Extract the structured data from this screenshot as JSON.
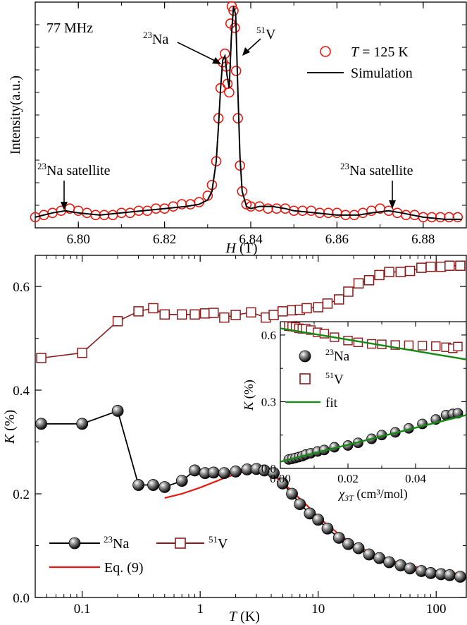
{
  "colors": {
    "red": "#e8170f",
    "brown": "#8b1a1a",
    "green": "#138a13",
    "black": "#000000"
  },
  "chart_data": [
    {
      "type": "scatter",
      "xlabel_sym": "H",
      "xlabel_unit": " (T)",
      "ylabel": "Intensity(a.u.)",
      "xlim": [
        6.79,
        6.89
      ],
      "ylim": [
        0,
        1
      ],
      "x_ticks": [
        6.8,
        6.82,
        6.84,
        6.86,
        6.88
      ],
      "x_tick_labels": [
        "6.80",
        "6.82",
        "6.84",
        "6.86",
        "6.88"
      ],
      "annotations": {
        "freq": "77 MHz",
        "na_sup": "23",
        "na_text": "Na",
        "v_sup": "51",
        "v_text": "V",
        "sat_text": "Na satellite"
      },
      "legend": {
        "temp_sym": "T",
        "temp_rest": " = 125 K",
        "sim": "Simulation"
      },
      "series": [
        {
          "name": "T = 125 K",
          "x": [
            6.79,
            6.792,
            6.794,
            6.796,
            6.798,
            6.8,
            6.802,
            6.804,
            6.806,
            6.808,
            6.81,
            6.812,
            6.814,
            6.816,
            6.818,
            6.82,
            6.822,
            6.824,
            6.826,
            6.828,
            6.83,
            6.831,
            6.832,
            6.8325,
            6.833,
            6.8335,
            6.834,
            6.8343,
            6.8346,
            6.835,
            6.8353,
            6.8356,
            6.836,
            6.8363,
            6.8366,
            6.837,
            6.8375,
            6.838,
            6.839,
            6.84,
            6.842,
            6.844,
            6.846,
            6.848,
            6.85,
            6.852,
            6.854,
            6.856,
            6.858,
            6.86,
            6.862,
            6.864,
            6.866,
            6.868,
            6.87,
            6.872,
            6.874,
            6.876,
            6.878,
            6.88,
            6.882,
            6.884,
            6.886,
            6.888
          ],
          "y": [
            0.02,
            0.03,
            0.04,
            0.05,
            0.06,
            0.05,
            0.04,
            0.03,
            0.03,
            0.03,
            0.04,
            0.04,
            0.05,
            0.05,
            0.06,
            0.06,
            0.07,
            0.08,
            0.08,
            0.09,
            0.12,
            0.17,
            0.28,
            0.48,
            0.62,
            0.74,
            0.78,
            0.72,
            0.64,
            0.6,
            0.92,
            1.0,
            0.98,
            0.9,
            0.7,
            0.48,
            0.26,
            0.14,
            0.08,
            0.07,
            0.07,
            0.06,
            0.06,
            0.06,
            0.05,
            0.05,
            0.05,
            0.04,
            0.04,
            0.04,
            0.03,
            0.03,
            0.04,
            0.05,
            0.06,
            0.05,
            0.04,
            0.03,
            0.03,
            0.02,
            0.02,
            0.02,
            0.02,
            0.02
          ]
        },
        {
          "name": "Simulation",
          "x": [
            6.79,
            6.794,
            6.797,
            6.8,
            6.805,
            6.81,
            6.815,
            6.82,
            6.825,
            6.828,
            6.83,
            6.831,
            6.832,
            6.8325,
            6.833,
            6.8335,
            6.834,
            6.8345,
            6.835,
            6.8355,
            6.836,
            6.8365,
            6.837,
            6.8375,
            6.838,
            6.839,
            6.84,
            6.842,
            6.845,
            6.848,
            6.85,
            6.855,
            6.86,
            6.865,
            6.868,
            6.872,
            6.875,
            6.88,
            6.885,
            6.889
          ],
          "y": [
            0.02,
            0.04,
            0.05,
            0.04,
            0.03,
            0.04,
            0.05,
            0.06,
            0.07,
            0.08,
            0.1,
            0.14,
            0.28,
            0.44,
            0.62,
            0.75,
            0.77,
            0.68,
            0.62,
            0.86,
            1.0,
            0.96,
            0.62,
            0.3,
            0.14,
            0.07,
            0.06,
            0.07,
            0.07,
            0.06,
            0.05,
            0.04,
            0.03,
            0.03,
            0.04,
            0.05,
            0.04,
            0.02,
            0.01,
            0.01
          ]
        }
      ]
    },
    {
      "type": "line",
      "xscale": "log",
      "xlabel_sym": "T",
      "xlabel_unit": " (K)",
      "ylabel_sym": "K",
      "ylabel_unit": " (%)",
      "xlim": [
        0.04,
        180
      ],
      "ylim": [
        0.0,
        0.66
      ],
      "x_ticks": [
        0.1,
        1,
        10,
        100
      ],
      "x_tick_labels": [
        "0.1",
        "1",
        "10",
        "100"
      ],
      "y_ticks": [
        0.0,
        0.2,
        0.4,
        0.6
      ],
      "y_tick_labels": [
        "0.0",
        "0.2",
        "0.4",
        "0.6"
      ],
      "legend": {
        "na_sup": "23",
        "na_text": "Na",
        "v_sup": "51",
        "v_text": "V",
        "eq": "Eq. (9)"
      },
      "series": [
        {
          "name": "23Na",
          "x": [
            0.045,
            0.1,
            0.2,
            0.3,
            0.4,
            0.5,
            0.7,
            0.9,
            1.1,
            1.3,
            1.6,
            2.0,
            2.5,
            3.0,
            3.5,
            4.2,
            5.0,
            6.0,
            7.0,
            8.5,
            10,
            12,
            15,
            18,
            22,
            27,
            33,
            40,
            50,
            60,
            75,
            90,
            110,
            130,
            160
          ],
          "y": [
            0.335,
            0.335,
            0.36,
            0.217,
            0.217,
            0.213,
            0.225,
            0.245,
            0.24,
            0.241,
            0.24,
            0.243,
            0.247,
            0.248,
            0.245,
            0.24,
            0.22,
            0.2,
            0.18,
            0.162,
            0.15,
            0.133,
            0.115,
            0.103,
            0.095,
            0.083,
            0.076,
            0.068,
            0.062,
            0.056,
            0.051,
            0.047,
            0.045,
            0.043,
            0.04
          ]
        },
        {
          "name": "51V",
          "x": [
            0.045,
            0.1,
            0.2,
            0.3,
            0.4,
            0.5,
            0.7,
            0.9,
            1.1,
            1.3,
            1.6,
            2.0,
            2.7,
            3.6,
            4.2,
            5.0,
            6.0,
            7.0,
            8.0,
            10,
            12,
            15,
            18,
            22,
            27,
            33,
            40,
            50,
            60,
            75,
            90,
            110,
            130,
            160
          ],
          "y": [
            0.462,
            0.472,
            0.533,
            0.552,
            0.558,
            0.546,
            0.546,
            0.546,
            0.548,
            0.549,
            0.54,
            0.545,
            0.55,
            0.54,
            0.545,
            0.552,
            0.554,
            0.555,
            0.558,
            0.56,
            0.567,
            0.575,
            0.59,
            0.606,
            0.612,
            0.622,
            0.628,
            0.628,
            0.63,
            0.636,
            0.638,
            0.638,
            0.64,
            0.64
          ]
        },
        {
          "name": "Eq. (9)",
          "x": [
            0.5,
            0.7,
            1.0,
            1.5,
            2.0,
            2.5,
            3.0,
            3.5,
            4.0,
            5.0,
            6.0,
            8.0,
            10,
            15,
            20,
            30,
            50,
            80,
            120,
            180
          ],
          "y": [
            0.192,
            0.2,
            0.212,
            0.228,
            0.238,
            0.244,
            0.246,
            0.244,
            0.238,
            0.222,
            0.205,
            0.178,
            0.155,
            0.122,
            0.102,
            0.083,
            0.066,
            0.055,
            0.049,
            0.044
          ]
        }
      ]
    },
    {
      "type": "scatter",
      "inset": true,
      "xlabel_sym": "χ",
      "xlabel_sub": "3T",
      "xlabel_unit": " (cm³/mol)",
      "ylabel_sym": "K",
      "ylabel_unit": " (%)",
      "xlim": [
        0.0,
        0.055
      ],
      "ylim": [
        0.0,
        0.66
      ],
      "x_ticks": [
        0.0,
        0.02,
        0.04
      ],
      "x_tick_labels": [
        "0.00",
        "0.02",
        "0.04"
      ],
      "y_ticks": [
        0.0,
        0.3,
        0.6
      ],
      "y_tick_labels": [
        "0.0",
        "0.3",
        "0.6"
      ],
      "legend": {
        "na_sup": "23",
        "na_text": "Na",
        "v_sup": "51",
        "v_text": "V",
        "fit": "fit"
      },
      "series": [
        {
          "name": "23Na",
          "x": [
            0.0025,
            0.0035,
            0.0045,
            0.0055,
            0.0065,
            0.0075,
            0.009,
            0.011,
            0.013,
            0.016,
            0.02,
            0.023,
            0.027,
            0.03,
            0.034,
            0.038,
            0.042,
            0.046,
            0.049,
            0.051,
            0.0525
          ],
          "y": [
            0.04,
            0.043,
            0.047,
            0.051,
            0.055,
            0.062,
            0.068,
            0.076,
            0.083,
            0.095,
            0.103,
            0.115,
            0.133,
            0.15,
            0.162,
            0.18,
            0.2,
            0.22,
            0.24,
            0.245,
            0.248
          ]
        },
        {
          "name": "51V",
          "x": [
            0.0025,
            0.0035,
            0.0045,
            0.0055,
            0.0065,
            0.0075,
            0.009,
            0.011,
            0.013,
            0.016,
            0.02,
            0.023,
            0.027,
            0.03,
            0.034,
            0.038,
            0.042,
            0.046,
            0.049,
            0.051,
            0.0525
          ],
          "y": [
            0.64,
            0.638,
            0.636,
            0.63,
            0.628,
            0.628,
            0.622,
            0.612,
            0.606,
            0.59,
            0.575,
            0.567,
            0.56,
            0.558,
            0.555,
            0.554,
            0.552,
            0.55,
            0.545,
            0.54,
            0.548
          ]
        },
        {
          "name": "fit",
          "lines": [
            {
              "x": [
                0.0,
                0.055
              ],
              "y": [
                0.63,
                0.49
              ]
            },
            {
              "x": [
                0.0,
                0.055
              ],
              "y": [
                0.03,
                0.24
              ]
            }
          ]
        }
      ]
    }
  ]
}
